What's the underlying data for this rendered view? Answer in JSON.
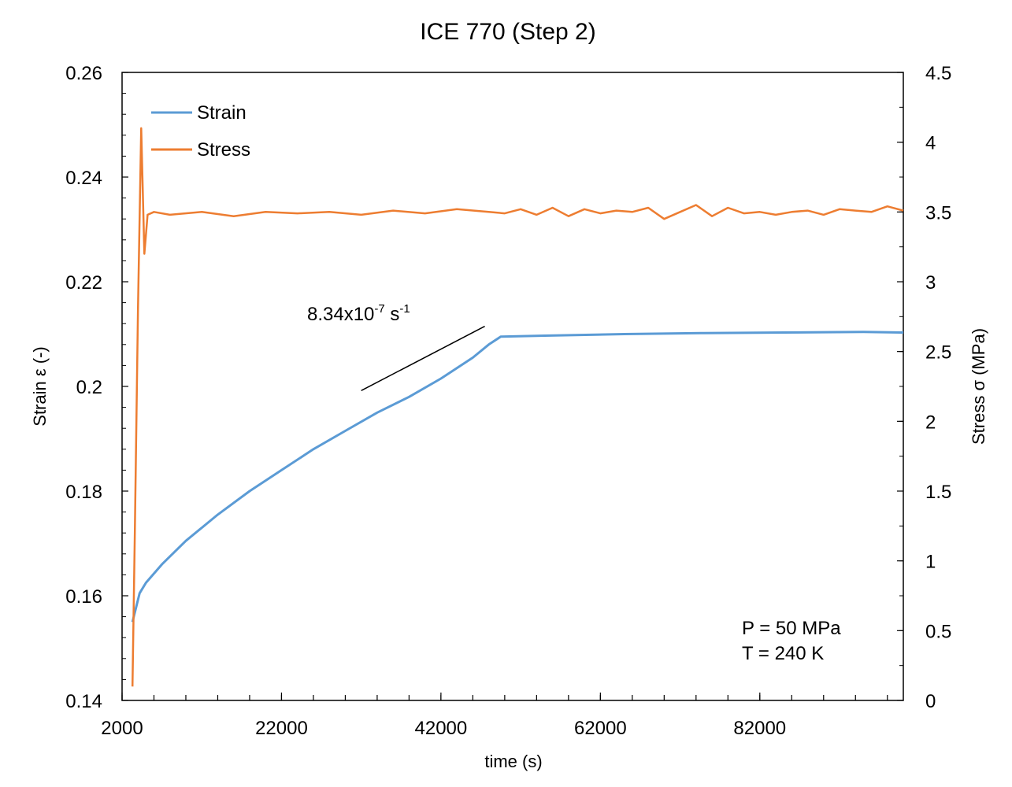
{
  "chart_data": {
    "type": "line",
    "title": "ICE 770 (Step 2)",
    "xlabel": "time (s)",
    "ylabel_left": "Strain ε (-)",
    "ylabel_right": "Stress σ (MPa)",
    "xlim": [
      2000,
      100000
    ],
    "ylim_left": [
      0.14,
      0.26
    ],
    "ylim_right": [
      0,
      4.5
    ],
    "x_ticks": [
      2000,
      22000,
      42000,
      62000,
      82000
    ],
    "x_tick_labels": [
      "2000",
      "22000",
      "42000",
      "62000",
      "82000"
    ],
    "y_left_ticks": [
      0.14,
      0.16,
      0.18,
      0.2,
      0.22,
      0.24,
      0.26
    ],
    "y_left_tick_labels": [
      "0.14",
      "0.16",
      "0.18",
      "0.2",
      "0.22",
      "0.24",
      "0.26"
    ],
    "y_right_ticks": [
      0,
      0.5,
      1,
      1.5,
      2,
      2.5,
      3,
      3.5,
      4,
      4.5
    ],
    "y_right_tick_labels": [
      "0",
      "0.5",
      "1",
      "1.5",
      "2",
      "2.5",
      "3",
      "3.5",
      "4",
      "4.5"
    ],
    "legend": {
      "placement": "top-left",
      "entries": [
        "Strain",
        "Stress"
      ]
    },
    "series": [
      {
        "name": "Strain",
        "axis": "left",
        "color": "#5B9BD5",
        "x": [
          3300,
          4200,
          5000,
          7000,
          10000,
          14000,
          18000,
          22000,
          26000,
          30000,
          34000,
          38000,
          42000,
          46000,
          48000,
          49500,
          55000,
          65000,
          75000,
          85000,
          95000,
          100000
        ],
        "y": [
          0.155,
          0.1605,
          0.1625,
          0.166,
          0.1705,
          0.1755,
          0.18,
          0.184,
          0.188,
          0.1915,
          0.195,
          0.198,
          0.2015,
          0.2055,
          0.208,
          0.2095,
          0.2097,
          0.21,
          0.2102,
          0.2103,
          0.2104,
          0.2103
        ]
      },
      {
        "name": "Stress",
        "axis": "right",
        "color": "#ED7D31",
        "x": [
          3300,
          3600,
          4000,
          4400,
          4800,
          5200,
          6000,
          8000,
          12000,
          16000,
          20000,
          24000,
          28000,
          32000,
          36000,
          40000,
          44000,
          48000,
          50000,
          52000,
          54000,
          56000,
          58000,
          60000,
          62000,
          64000,
          66000,
          68000,
          70000,
          72000,
          74000,
          76000,
          78000,
          80000,
          82000,
          84000,
          86000,
          88000,
          90000,
          92000,
          94000,
          96000,
          98000,
          100000
        ],
        "y": [
          0.1,
          1.2,
          2.8,
          4.1,
          3.2,
          3.48,
          3.5,
          3.48,
          3.5,
          3.47,
          3.5,
          3.49,
          3.5,
          3.48,
          3.51,
          3.49,
          3.52,
          3.5,
          3.49,
          3.52,
          3.48,
          3.53,
          3.47,
          3.52,
          3.49,
          3.51,
          3.5,
          3.53,
          3.45,
          3.5,
          3.55,
          3.47,
          3.53,
          3.49,
          3.5,
          3.48,
          3.5,
          3.51,
          3.48,
          3.52,
          3.51,
          3.5,
          3.54,
          3.51
        ]
      }
    ],
    "annotations": {
      "slope_value": "8.34x10",
      "slope_exp": "-7",
      "slope_unit": "s",
      "slope_unit_exp": "-1",
      "slope_line": {
        "x": [
          32000,
          47500
        ],
        "y": [
          0.1992,
          0.2115
        ]
      },
      "conditions": [
        "P = 50 MPa",
        "T = 240 K"
      ]
    }
  }
}
